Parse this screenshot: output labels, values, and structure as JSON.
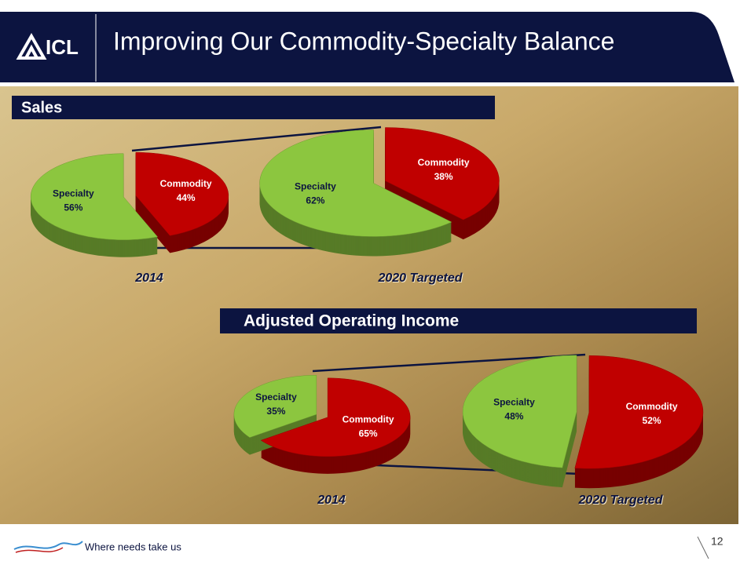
{
  "header": {
    "logo": "ICL",
    "title": "Improving Our Commodity-Specialty Balance"
  },
  "sections": [
    {
      "title": "Sales"
    },
    {
      "title": "Adjusted Operating Income"
    }
  ],
  "chart_data": [
    {
      "type": "pie",
      "title": "2014",
      "categories": [
        "Specialty",
        "Commodity"
      ],
      "values": [
        56,
        44
      ],
      "value_labels": [
        "56%",
        "44%"
      ],
      "colors": [
        "#8cc63f",
        "#c00000"
      ]
    },
    {
      "type": "pie",
      "title": "2020 Targeted",
      "categories": [
        "Specialty",
        "Commodity"
      ],
      "values": [
        62,
        38
      ],
      "value_labels": [
        "62%",
        "38%"
      ],
      "colors": [
        "#8cc63f",
        "#c00000"
      ]
    },
    {
      "type": "pie",
      "title": "2014",
      "categories": [
        "Specialty",
        "Commodity"
      ],
      "values": [
        35,
        65
      ],
      "value_labels": [
        "35%",
        "65%"
      ],
      "colors": [
        "#8cc63f",
        "#c00000"
      ]
    },
    {
      "type": "pie",
      "title": "2020 Targeted",
      "categories": [
        "Specialty",
        "Commodity"
      ],
      "values": [
        48,
        52
      ],
      "value_labels": [
        "48%",
        "52%"
      ],
      "colors": [
        "#8cc63f",
        "#c00000"
      ]
    }
  ],
  "footer": {
    "tagline": "Where needs take us",
    "page": "12"
  }
}
